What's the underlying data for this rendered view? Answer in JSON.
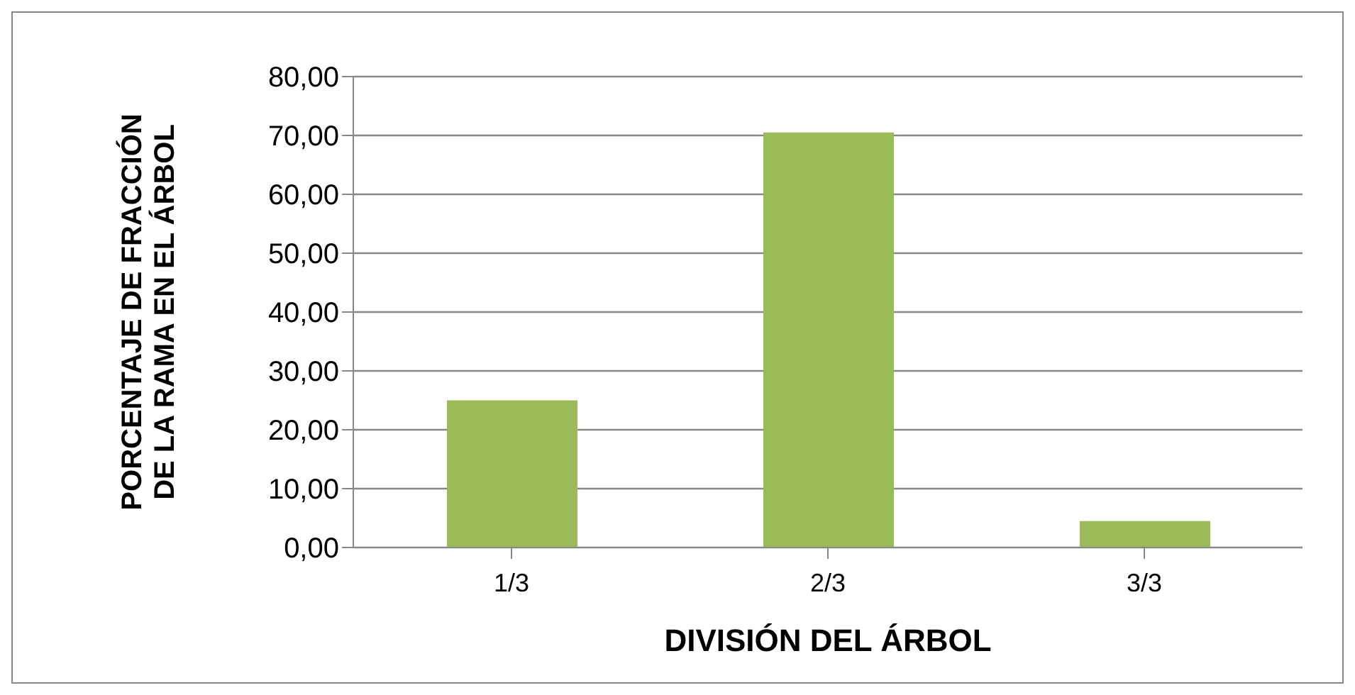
{
  "chart_data": {
    "type": "bar",
    "xlabel": "DIVISIÓN DEL ÁRBOL",
    "ylabel": "PORCENTAJE DE FRACCIÓN DE LA RAMA EN EL ÁRBOL",
    "categories": [
      "1/3",
      "2/3",
      "3/3"
    ],
    "values": [
      25,
      70.5,
      4.5
    ],
    "color": "#9bbb59",
    "ylim": [
      0,
      80
    ],
    "yticks": [
      {
        "value": 0,
        "label": "0,00"
      },
      {
        "value": 10,
        "label": "10,00"
      },
      {
        "value": 20,
        "label": "20,00"
      },
      {
        "value": 30,
        "label": "30,00"
      },
      {
        "value": 40,
        "label": "40,00"
      },
      {
        "value": 50,
        "label": "50,00"
      },
      {
        "value": 60,
        "label": "60,00"
      },
      {
        "value": 70,
        "label": "70,00"
      },
      {
        "value": 80,
        "label": "80,00"
      }
    ],
    "grid": "y",
    "legend": false
  }
}
